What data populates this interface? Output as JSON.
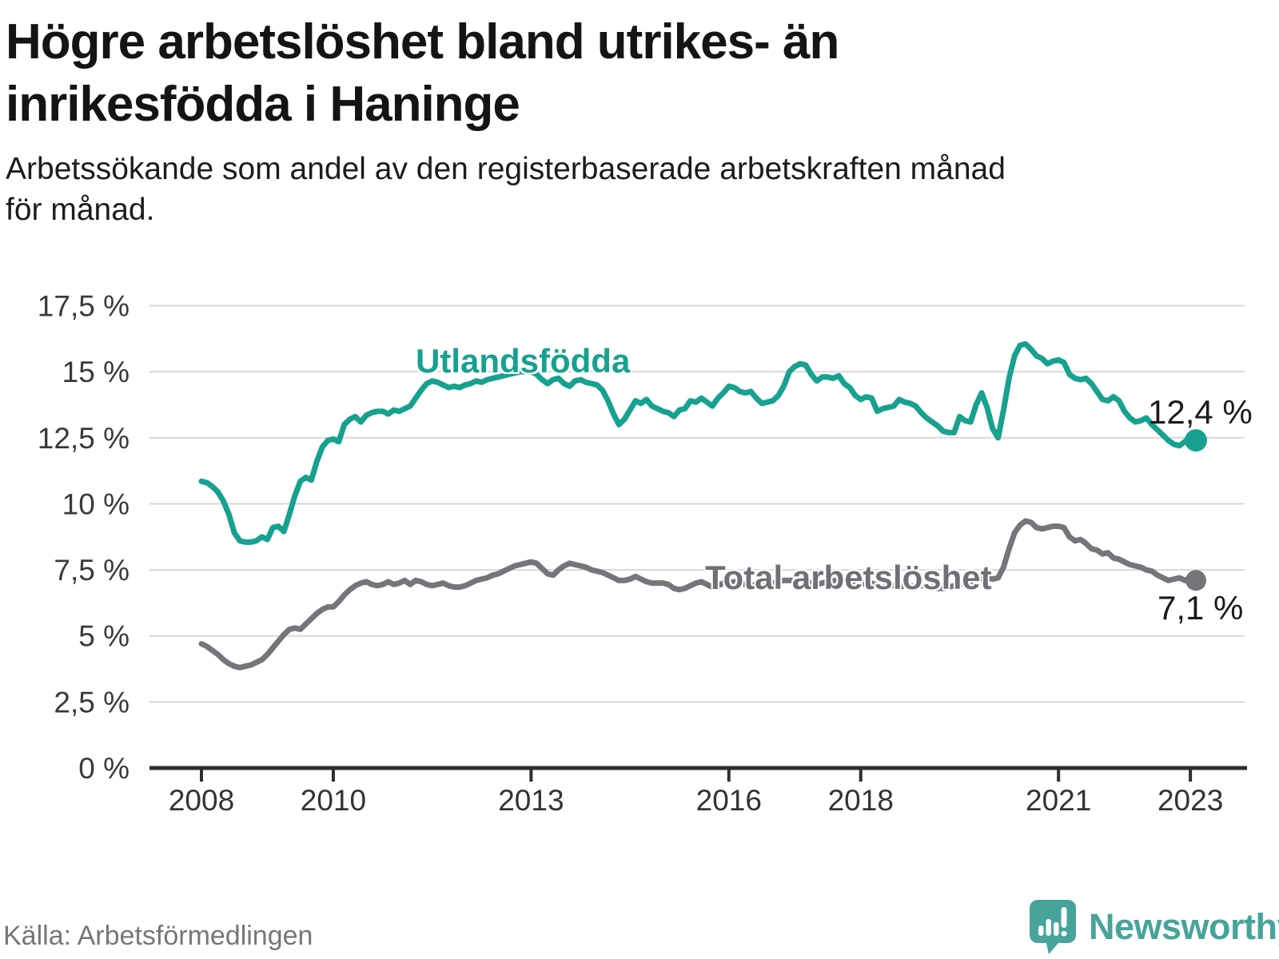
{
  "header": {
    "title_lines": [
      "Högre arbetslöshet bland utrikes- än",
      "inrikesfödda i Haninge"
    ],
    "subtitle_lines": [
      "Arbetssökande som andel av den registerbaserade arbetskraften månad",
      "för månad."
    ]
  },
  "colors": {
    "accent_teal": "#17a190",
    "line_gray": "#75757b",
    "axis_dark": "#2e2e2e",
    "gridline": "#d8d8d8",
    "tick_label": "#333333",
    "brand_teal": "#46a49a"
  },
  "chart_data": {
    "type": "line",
    "unit": "%",
    "frequency": "monthly",
    "x_start": "2008-01",
    "x_end": "2023-02",
    "grid": true,
    "ylim": [
      0,
      18.2
    ],
    "y_ticks": [
      {
        "value": 0,
        "label": "0 %"
      },
      {
        "value": 2.5,
        "label": "2,5 %"
      },
      {
        "value": 5,
        "label": "5 %"
      },
      {
        "value": 7.5,
        "label": "7,5 %"
      },
      {
        "value": 10,
        "label": "10 %"
      },
      {
        "value": 12.5,
        "label": "12,5 %"
      },
      {
        "value": 15,
        "label": "15 %"
      },
      {
        "value": 17.5,
        "label": "17,5 %"
      }
    ],
    "x_ticks": [
      {
        "year": 2008,
        "label": "2008"
      },
      {
        "year": 2010,
        "label": "2010"
      },
      {
        "year": 2013,
        "label": "2013"
      },
      {
        "year": 2016,
        "label": "2016"
      },
      {
        "year": 2018,
        "label": "2018"
      },
      {
        "year": 2021,
        "label": "2021"
      },
      {
        "year": 2023,
        "label": "2023"
      }
    ],
    "series": [
      {
        "name": "Utlandsfödda",
        "color": "#17a190",
        "end_label": "12,4 %",
        "end_value": 12.4,
        "values": [
          10.85,
          10.8,
          10.65,
          10.45,
          10.1,
          9.6,
          8.9,
          8.6,
          8.55,
          8.55,
          8.6,
          8.75,
          8.65,
          9.1,
          9.15,
          8.95,
          9.6,
          10.3,
          10.85,
          11.0,
          10.9,
          11.6,
          12.15,
          12.4,
          12.45,
          12.35,
          13.0,
          13.2,
          13.3,
          13.1,
          13.35,
          13.45,
          13.5,
          13.5,
          13.4,
          13.55,
          13.5,
          13.6,
          13.7,
          14.0,
          14.3,
          14.55,
          14.65,
          14.6,
          14.5,
          14.4,
          14.45,
          14.4,
          14.5,
          14.55,
          14.65,
          14.6,
          14.7,
          14.75,
          14.8,
          14.85,
          14.9,
          14.95,
          15.0,
          15.0,
          15.0,
          14.9,
          14.7,
          14.55,
          14.7,
          14.75,
          14.55,
          14.45,
          14.65,
          14.7,
          14.6,
          14.55,
          14.5,
          14.3,
          13.9,
          13.4,
          13.0,
          13.2,
          13.55,
          13.9,
          13.8,
          13.95,
          13.7,
          13.6,
          13.5,
          13.45,
          13.3,
          13.55,
          13.6,
          13.9,
          13.85,
          14.0,
          13.85,
          13.7,
          14.0,
          14.2,
          14.45,
          14.4,
          14.25,
          14.2,
          14.25,
          14.0,
          13.8,
          13.85,
          13.9,
          14.1,
          14.45,
          15.0,
          15.2,
          15.3,
          15.25,
          14.9,
          14.65,
          14.8,
          14.8,
          14.75,
          14.85,
          14.55,
          14.4,
          14.1,
          13.95,
          14.05,
          14.0,
          13.5,
          13.6,
          13.65,
          13.7,
          13.95,
          13.85,
          13.8,
          13.7,
          13.45,
          13.25,
          13.1,
          12.95,
          12.75,
          12.7,
          12.7,
          13.3,
          13.15,
          13.1,
          13.75,
          14.2,
          13.65,
          12.85,
          12.5,
          13.55,
          14.75,
          15.6,
          16.0,
          16.05,
          15.85,
          15.6,
          15.5,
          15.3,
          15.4,
          15.45,
          15.35,
          14.9,
          14.75,
          14.7,
          14.75,
          14.55,
          14.25,
          13.95,
          13.9,
          14.05,
          13.9,
          13.5,
          13.25,
          13.1,
          13.15,
          13.25,
          13.0,
          12.8,
          12.6,
          12.4,
          12.25,
          12.2,
          12.35,
          12.55,
          12.4
        ]
      },
      {
        "name": "Total arbetslöshet",
        "color": "#75757b",
        "end_label": "7,1 %",
        "end_value": 7.1,
        "values": [
          4.7,
          4.6,
          4.45,
          4.3,
          4.1,
          3.95,
          3.85,
          3.8,
          3.85,
          3.9,
          4.0,
          4.1,
          4.3,
          4.55,
          4.8,
          5.05,
          5.25,
          5.3,
          5.25,
          5.45,
          5.65,
          5.85,
          6.0,
          6.1,
          6.1,
          6.3,
          6.55,
          6.75,
          6.9,
          7.0,
          7.05,
          6.95,
          6.9,
          6.95,
          7.05,
          6.95,
          7.0,
          7.1,
          6.95,
          7.1,
          7.05,
          6.95,
          6.9,
          6.95,
          7.0,
          6.9,
          6.85,
          6.85,
          6.9,
          7.0,
          7.1,
          7.15,
          7.2,
          7.3,
          7.35,
          7.45,
          7.55,
          7.65,
          7.7,
          7.75,
          7.8,
          7.75,
          7.55,
          7.35,
          7.3,
          7.5,
          7.65,
          7.75,
          7.7,
          7.65,
          7.6,
          7.5,
          7.45,
          7.4,
          7.3,
          7.2,
          7.1,
          7.1,
          7.15,
          7.25,
          7.15,
          7.05,
          7.0,
          7.0,
          7.0,
          6.95,
          6.8,
          6.75,
          6.8,
          6.9,
          7.0,
          7.05,
          6.95,
          6.85,
          6.9,
          7.0,
          7.0,
          7.05,
          7.0,
          6.95,
          6.9,
          6.95,
          7.0,
          7.05,
          7.0,
          7.05,
          7.1,
          7.1,
          7.1,
          7.15,
          7.1,
          7.0,
          6.95,
          7.0,
          7.05,
          7.1,
          7.05,
          7.1,
          7.05,
          7.0,
          6.95,
          7.0,
          7.0,
          6.9,
          6.85,
          6.9,
          6.9,
          6.85,
          6.9,
          6.9,
          6.85,
          6.9,
          6.9,
          6.85,
          6.8,
          6.8,
          6.85,
          6.9,
          7.0,
          6.95,
          7.0,
          7.1,
          7.15,
          7.2,
          7.15,
          7.2,
          7.6,
          8.3,
          8.9,
          9.2,
          9.35,
          9.3,
          9.1,
          9.05,
          9.1,
          9.15,
          9.15,
          9.1,
          8.75,
          8.6,
          8.65,
          8.5,
          8.3,
          8.25,
          8.1,
          8.15,
          7.95,
          7.9,
          7.8,
          7.7,
          7.65,
          7.6,
          7.5,
          7.45,
          7.3,
          7.2,
          7.1,
          7.15,
          7.2,
          7.1,
          7.2,
          7.1
        ]
      }
    ]
  },
  "footer": {
    "source": "Källa: Arbetsförmedlingen",
    "brand": "Newsworthy"
  }
}
